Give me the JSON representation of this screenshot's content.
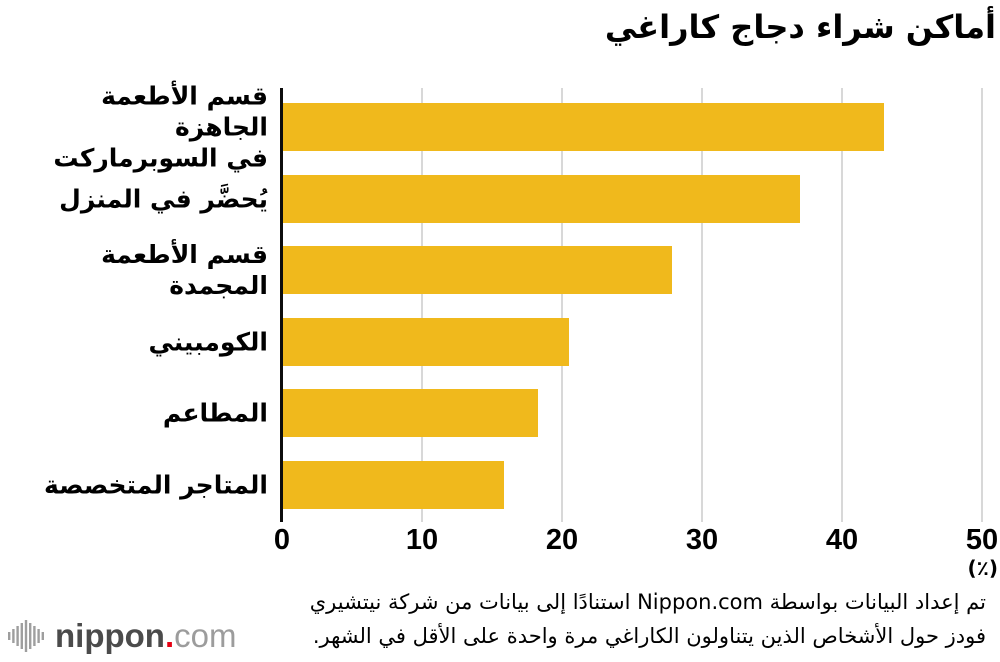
{
  "title": "أماكن شراء دجاج كاراغي",
  "chart_data": {
    "type": "bar",
    "orientation": "horizontal",
    "title": "أماكن شراء دجاج كاراغي",
    "categories": [
      "قسم الأطعمة الجاهزة\nفي السوبرماركت",
      "يُحضَّر في المنزل",
      "قسم الأطعمة المجمدة",
      "الكومبيني",
      "المطاعم",
      "المتاجر المتخصصة"
    ],
    "values": [
      42.9,
      36.9,
      27.8,
      20.4,
      18.2,
      15.8
    ],
    "xlabel": "",
    "ylabel": "",
    "x_unit_label": "(٪)",
    "xlim": [
      0,
      50
    ],
    "x_ticks": [
      0,
      10,
      20,
      30,
      40,
      50
    ],
    "grid": true,
    "legend": "none",
    "bar_color": "#f0b91c",
    "gridline_color": "#d8d8d8",
    "axis_color": "#0d0d0d"
  },
  "footer": {
    "source_line1": "تم إعداد البيانات بواسطة Nippon.com استنادًا إلى بيانات من شركة نيتشيري",
    "source_line2": "فودز حول الأشخاص الذين يتناولون الكاراغي مرة واحدة على الأقل في الشهر."
  },
  "logo": {
    "name": "nippon",
    "dot": ".",
    "tld": "com",
    "colors": {
      "name": "#4b4b4b",
      "dot": "#e60012",
      "tld": "#9c9c9c",
      "icon": "#9e9e9e"
    }
  }
}
